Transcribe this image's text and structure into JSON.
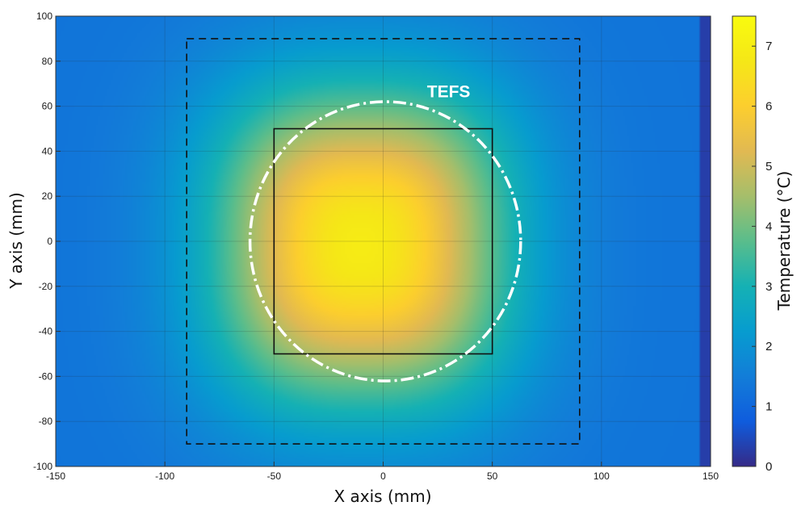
{
  "chart_data": {
    "type": "heatmap",
    "title": "",
    "xlabel": "X axis (mm)",
    "ylabel": "Y axis (mm)",
    "xlim": [
      -150,
      150
    ],
    "ylim": [
      -100,
      100
    ],
    "x_ticks": [
      -150,
      -100,
      -50,
      0,
      50,
      100,
      150
    ],
    "y_ticks": [
      -100,
      -80,
      -60,
      -40,
      -20,
      0,
      20,
      40,
      60,
      80,
      100
    ],
    "grid": true,
    "colormap": "parula",
    "colorbar": {
      "label": "Temperature (°C)",
      "range": [
        0,
        7.5
      ],
      "ticks": [
        0,
        1,
        2,
        3,
        4,
        5,
        6,
        7
      ]
    },
    "field": {
      "description_values": "temperature field, peak at center",
      "peak_temperature": 6.9,
      "background_temperature": 1.3,
      "edge_strip_x": [
        145,
        150
      ],
      "edge_strip_temperature": 0.3
    },
    "overlays": [
      {
        "name": "dashed-square",
        "style": "dashed",
        "color": "#111111",
        "x": [
          -90,
          90
        ],
        "y": [
          -90,
          90
        ]
      },
      {
        "name": "solid-square",
        "style": "solid",
        "color": "#111111",
        "x": [
          -50,
          50
        ],
        "y": [
          -50,
          50
        ]
      },
      {
        "name": "tefs-contour",
        "style": "dash-dot",
        "color": "#ffffff",
        "center": [
          1,
          0
        ],
        "radius_x": 62,
        "radius_y": 62
      }
    ],
    "annotations": [
      {
        "text": "TEFS",
        "x": 30,
        "y": 64
      }
    ]
  }
}
